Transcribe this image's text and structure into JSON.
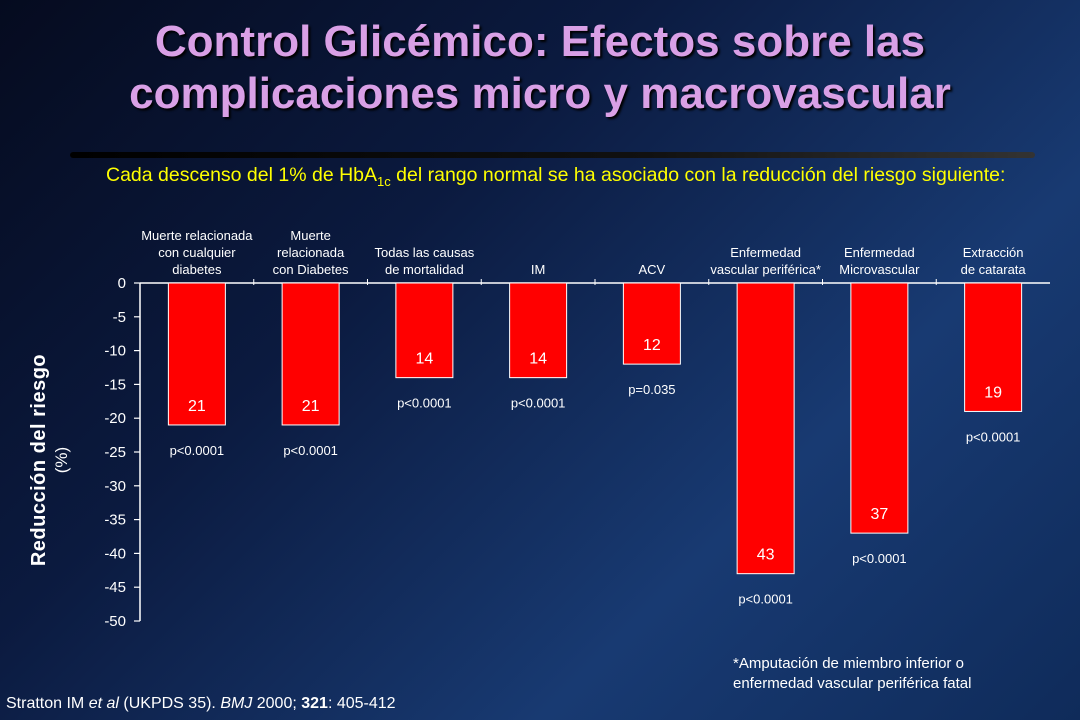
{
  "title": {
    "line1": "Control Glicémico: Efectos sobre las",
    "line2": "complicaciones micro y macrovascular"
  },
  "subtitle": {
    "before": "Cada descenso del 1% de HbA",
    "sub": "1c",
    "after": " del  rango normal se ha asociado con la reducción del riesgo siguiente:"
  },
  "chart_data": {
    "type": "bar",
    "ylabel": "Reducción del riesgo",
    "yunit": "(%)",
    "ylim": [
      -50,
      0
    ],
    "yticks": [
      "0",
      "-5",
      "-10",
      "-15",
      "-20",
      "-25",
      "-30",
      "-35",
      "-40",
      "-45",
      "-50"
    ],
    "bar_color": "#ff0000",
    "categories": [
      [
        "Muerte relacionada",
        "con cualquier",
        "diabetes"
      ],
      [
        "Muerte",
        "relacionada",
        "con Diabetes"
      ],
      [
        "Todas las causas",
        "de mortalidad"
      ],
      [
        "IM"
      ],
      [
        "ACV"
      ],
      [
        "Enfermedad",
        "vascular periférica*"
      ],
      [
        "Enfermedad",
        "Microvascular"
      ],
      [
        "Extracción",
        "de catarata"
      ]
    ],
    "values": [
      -21,
      -21,
      -14,
      -14,
      -12,
      -43,
      -37,
      -19
    ],
    "data_labels": [
      "21",
      "21",
      "14",
      "14",
      "12",
      "43",
      "37",
      "19"
    ],
    "p_values": [
      "p<0.0001",
      "p<0.0001",
      "p<0.0001",
      "p<0.0001",
      "p=0.035",
      "p<0.0001",
      "p<0.0001",
      "p<0.0001"
    ]
  },
  "footnote": {
    "line1": "*Amputación de miembro inferior o",
    "line2": "enfermedad vascular periférica fatal"
  },
  "citation": {
    "authors": "Stratton IM ",
    "etal": "et al",
    "study": " (UKPDS 35). ",
    "journal": "BMJ",
    "year": " 2000; ",
    "volume": "321",
    "pages": ": 405-412"
  }
}
